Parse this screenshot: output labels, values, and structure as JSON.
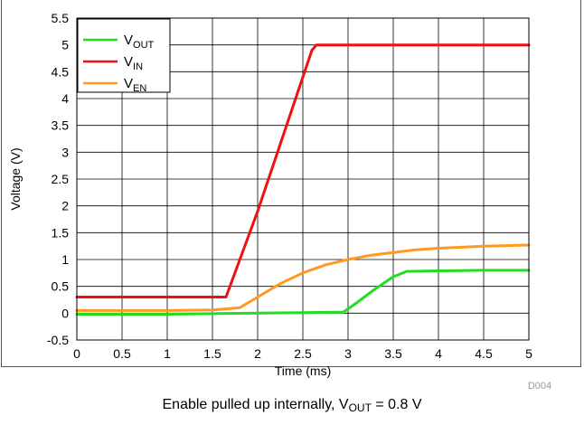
{
  "chart_data": {
    "type": "line",
    "title": "",
    "xlabel": "Time (ms)",
    "ylabel": "Voltage (V)",
    "xlim": [
      0,
      5
    ],
    "ylim": [
      -0.5,
      5.5
    ],
    "xticks": [
      0,
      0.5,
      1,
      1.5,
      2,
      2.5,
      3,
      3.5,
      4,
      4.5,
      5
    ],
    "xtick_labels": [
      "0",
      "0.5",
      "1",
      "1.5",
      "2",
      "2.5",
      "3",
      "3.5",
      "4",
      "4.5",
      "5"
    ],
    "yticks": [
      -0.5,
      0,
      0.5,
      1,
      1.5,
      2,
      2.5,
      3,
      3.5,
      4,
      4.5,
      5,
      5.5
    ],
    "ytick_labels": [
      "-0.5",
      "0",
      "0.5",
      "1",
      "1.5",
      "2",
      "2.5",
      "3",
      "3.5",
      "4",
      "4.5",
      "5",
      "5.5"
    ],
    "grid": true,
    "legend_position": "top-left",
    "series": [
      {
        "name": "V",
        "name_sub": "OUT",
        "color": "#22dd22",
        "x": [
          0,
          0.5,
          1.0,
          1.5,
          2.0,
          2.5,
          2.95,
          3.1,
          3.3,
          3.5,
          3.65,
          4.0,
          4.5,
          5.0
        ],
        "y": [
          -0.02,
          -0.02,
          -0.02,
          -0.01,
          0.0,
          0.01,
          0.02,
          0.2,
          0.45,
          0.68,
          0.78,
          0.79,
          0.8,
          0.8
        ]
      },
      {
        "name": "V",
        "name_sub": "IN",
        "color": "#ee1111",
        "x": [
          0,
          0.5,
          1.0,
          1.5,
          1.65,
          2.0,
          2.3,
          2.6,
          2.65,
          3.0,
          3.5,
          4.0,
          4.5,
          5.0
        ],
        "y": [
          0.3,
          0.3,
          0.3,
          0.3,
          0.3,
          1.9,
          3.4,
          4.9,
          5.0,
          5.0,
          5.0,
          5.0,
          5.0,
          5.0
        ]
      },
      {
        "name": "V",
        "name_sub": "EN",
        "color": "#ff9922",
        "x": [
          0,
          0.5,
          1.0,
          1.5,
          1.8,
          2.0,
          2.25,
          2.5,
          2.75,
          3.0,
          3.25,
          3.5,
          3.75,
          4.0,
          4.25,
          4.5,
          4.75,
          5.0
        ],
        "y": [
          0.05,
          0.05,
          0.05,
          0.06,
          0.1,
          0.3,
          0.55,
          0.75,
          0.9,
          1.0,
          1.08,
          1.13,
          1.18,
          1.21,
          1.23,
          1.25,
          1.26,
          1.27
        ]
      }
    ]
  },
  "figure_id": "D004",
  "caption": {
    "prefix": "Enable pulled up internally, V",
    "sub": "OUT",
    "suffix": " = 0.8 V"
  }
}
